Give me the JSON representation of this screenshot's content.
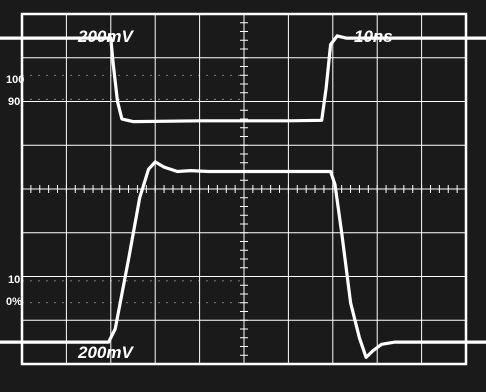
{
  "chart_data": {
    "type": "line",
    "title": "",
    "labels": {
      "top_left": "200mV",
      "top_right": "10ns",
      "bottom_left": "200mV"
    },
    "markers": {
      "m100": "100",
      "m90": "90",
      "m10": "10",
      "m0": "0%"
    },
    "grid": true,
    "colors": {
      "background": "#1a1a1a",
      "grid": "#ffffff",
      "trace": "#ffffff"
    },
    "xlim": [
      0,
      10
    ],
    "ylim": [
      0,
      8
    ],
    "series": [
      {
        "x": [
          0,
          2.0,
          2.05,
          2.15,
          2.25,
          2.5,
          4,
          6,
          6.75,
          6.85,
          6.95,
          7.1,
          7.3,
          10
        ],
        "y": [
          7.45,
          7.45,
          6.9,
          6.0,
          5.6,
          5.54,
          5.56,
          5.56,
          5.57,
          6.3,
          7.3,
          7.5,
          7.45,
          7.45
        ]
      },
      {
        "x": [
          0,
          1.95,
          2.1,
          2.4,
          2.65,
          2.85,
          3.0,
          3.2,
          3.5,
          3.8,
          4.2,
          5,
          6,
          6.95,
          7.05,
          7.2,
          7.4,
          7.6,
          7.75,
          7.9,
          8.1,
          8.4,
          10
        ],
        "y": [
          0.5,
          0.5,
          0.8,
          2.4,
          3.8,
          4.45,
          4.62,
          4.5,
          4.4,
          4.42,
          4.4,
          4.4,
          4.4,
          4.4,
          4.1,
          3.0,
          1.4,
          0.6,
          0.15,
          0.3,
          0.45,
          0.5,
          0.5
        ]
      }
    ]
  }
}
